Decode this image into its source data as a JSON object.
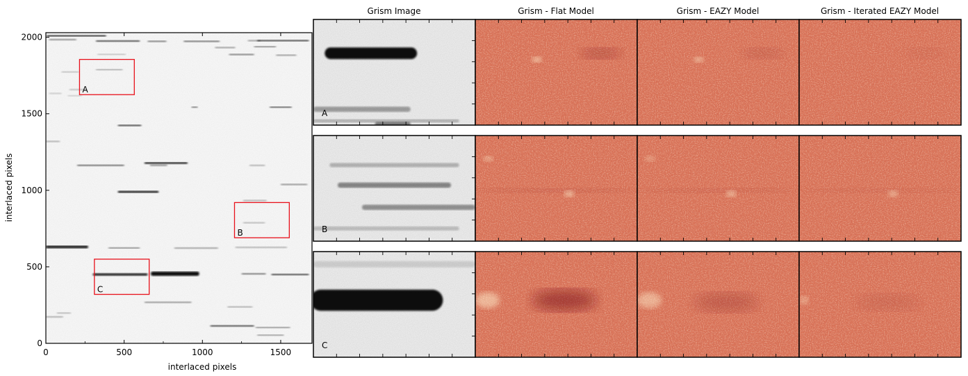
{
  "chart_data": [
    {
      "type": "heatmap",
      "xlabel": "interlaced pixels",
      "ylabel": "interlaced pixels",
      "xlim": [
        0,
        1700
      ],
      "ylim": [
        0,
        2030
      ],
      "x_ticks": [
        0,
        500,
        1000,
        1500
      ],
      "y_ticks": [
        0,
        500,
        1000,
        1500,
        2000
      ],
      "colormap": "gray_r",
      "regions": [
        {
          "label": "A",
          "x": [
            215,
            565
          ],
          "y": [
            1625,
            1855
          ]
        },
        {
          "label": "B",
          "x": [
            1205,
            1555
          ],
          "y": [
            690,
            920
          ]
        },
        {
          "label": "C",
          "x": [
            310,
            660
          ],
          "y": [
            320,
            550
          ]
        }
      ],
      "spectra": [
        [
          5,
          2010,
          380,
          8,
          1.0
        ],
        [
          20,
          1985,
          175,
          8,
          0.55
        ],
        [
          320,
          1975,
          280,
          9,
          0.9
        ],
        [
          650,
          1975,
          120,
          6,
          0.6
        ],
        [
          880,
          1975,
          230,
          6,
          0.65
        ],
        [
          1290,
          1980,
          80,
          5,
          0.45
        ],
        [
          1350,
          1980,
          330,
          6,
          0.9
        ],
        [
          1080,
          1935,
          130,
          5,
          0.45
        ],
        [
          1330,
          1940,
          140,
          5,
          0.6
        ],
        [
          1170,
          1890,
          160,
          4,
          0.6
        ],
        [
          1470,
          1885,
          130,
          5,
          0.45
        ],
        [
          330,
          1890,
          180,
          5,
          0.28
        ],
        [
          320,
          1790,
          170,
          5,
          0.4
        ],
        [
          100,
          1775,
          110,
          5,
          0.25
        ],
        [
          150,
          1660,
          110,
          5,
          0.28
        ],
        [
          20,
          1635,
          80,
          5,
          0.22
        ],
        [
          140,
          1620,
          90,
          5,
          0.22
        ],
        [
          1430,
          1545,
          140,
          5,
          0.85
        ],
        [
          930,
          1545,
          40,
          5,
          0.7
        ],
        [
          460,
          1425,
          150,
          6,
          0.9
        ],
        [
          0,
          1320,
          90,
          8,
          0.35
        ],
        [
          200,
          1165,
          300,
          6,
          0.75
        ],
        [
          665,
          1165,
          110,
          5,
          0.55
        ],
        [
          630,
          1178,
          275,
          12,
          1.0
        ],
        [
          1300,
          1165,
          100,
          4,
          0.35
        ],
        [
          1500,
          1040,
          170,
          6,
          0.5
        ],
        [
          460,
          990,
          260,
          14,
          0.95
        ],
        [
          0,
          630,
          270,
          17,
          1.0
        ],
        [
          400,
          625,
          200,
          6,
          0.6
        ],
        [
          820,
          625,
          280,
          5,
          0.45
        ],
        [
          1210,
          630,
          330,
          4,
          0.35
        ],
        [
          300,
          450,
          350,
          16,
          0.95
        ],
        [
          670,
          455,
          310,
          28,
          1.0
        ],
        [
          1250,
          455,
          155,
          7,
          0.65
        ],
        [
          1440,
          450,
          240,
          8,
          0.9
        ],
        [
          630,
          270,
          300,
          5,
          0.5
        ],
        [
          0,
          175,
          110,
          6,
          0.4
        ],
        [
          70,
          200,
          90,
          5,
          0.3
        ],
        [
          1050,
          115,
          280,
          7,
          0.9
        ],
        [
          1340,
          105,
          220,
          6,
          0.55
        ],
        [
          1350,
          55,
          170,
          6,
          0.5
        ],
        [
          1160,
          240,
          160,
          5,
          0.35
        ],
        [
          1260,
          790,
          140,
          5,
          0.3
        ],
        [
          1260,
          935,
          150,
          5,
          0.35
        ]
      ]
    },
    {
      "type": "heatmap",
      "grid": {
        "rows": [
          "A",
          "B",
          "C"
        ],
        "columns": [
          "Grism Image",
          "Grism - Flat Model",
          "Grism - EAZY Model",
          "Grism - Iterated EAZY Model"
        ]
      },
      "colormaps": {
        "image": "gray_r",
        "residual": "OrRd"
      },
      "panels": {
        "A": {
          "image": [
            [
              0.07,
              0.32,
              0.57,
              0.11,
              1.0
            ],
            [
              0.0,
              0.85,
              0.6,
              0.05,
              0.35
            ],
            [
              0.0,
              0.96,
              0.9,
              0.03,
              0.25
            ],
            [
              0.38,
              0.99,
              0.22,
              0.04,
              0.5
            ]
          ],
          "flat": [
            [
              0.65,
              0.32,
              0.25,
              0.1,
              0.35,
              "dark"
            ],
            [
              0.35,
              0.38,
              0.06,
              0.05,
              0.7,
              "light"
            ]
          ],
          "eazy": [
            [
              0.65,
              0.32,
              0.25,
              0.1,
              0.18,
              "dark"
            ],
            [
              0.35,
              0.38,
              0.06,
              0.05,
              0.6,
              "light"
            ]
          ],
          "iter": [
            [
              0.65,
              0.32,
              0.25,
              0.1,
              0.08,
              "dark"
            ]
          ]
        },
        "B": {
          "image": [
            [
              0.1,
              0.28,
              0.8,
              0.04,
              0.25
            ],
            [
              0.15,
              0.47,
              0.7,
              0.05,
              0.45
            ],
            [
              0.3,
              0.68,
              0.7,
              0.05,
              0.4
            ],
            [
              0.0,
              0.88,
              0.9,
              0.04,
              0.2
            ]
          ],
          "flat": [
            [
              0.0,
              0.52,
              1.0,
              0.04,
              0.25,
              "dark"
            ],
            [
              0.55,
              0.55,
              0.06,
              0.06,
              0.6,
              "light"
            ],
            [
              0.05,
              0.22,
              0.06,
              0.05,
              0.5,
              "light"
            ]
          ],
          "eazy": [
            [
              0.0,
              0.52,
              1.0,
              0.04,
              0.2,
              "dark"
            ],
            [
              0.55,
              0.55,
              0.06,
              0.06,
              0.55,
              "light"
            ],
            [
              0.05,
              0.22,
              0.06,
              0.05,
              0.4,
              "light"
            ]
          ],
          "iter": [
            [
              0.0,
              0.52,
              1.0,
              0.04,
              0.15,
              "dark"
            ],
            [
              0.55,
              0.55,
              0.06,
              0.06,
              0.5,
              "light"
            ]
          ]
        },
        "C": {
          "image": [
            [
              -0.02,
              0.46,
              0.82,
              0.2,
              1.0
            ],
            [
              0.0,
              0.12,
              1.0,
              0.06,
              0.12
            ]
          ],
          "flat": [
            [
              0.35,
              0.46,
              0.4,
              0.2,
              0.55,
              "dark"
            ],
            [
              0.0,
              0.46,
              0.15,
              0.15,
              0.5,
              "light"
            ]
          ],
          "eazy": [
            [
              0.35,
              0.48,
              0.4,
              0.18,
              0.25,
              "dark"
            ],
            [
              0.0,
              0.46,
              0.15,
              0.15,
              0.45,
              "light"
            ]
          ],
          "iter": [
            [
              0.35,
              0.48,
              0.4,
              0.15,
              0.12,
              "dark"
            ],
            [
              0.0,
              0.46,
              0.06,
              0.08,
              0.35,
              "light"
            ]
          ]
        }
      }
    }
  ]
}
